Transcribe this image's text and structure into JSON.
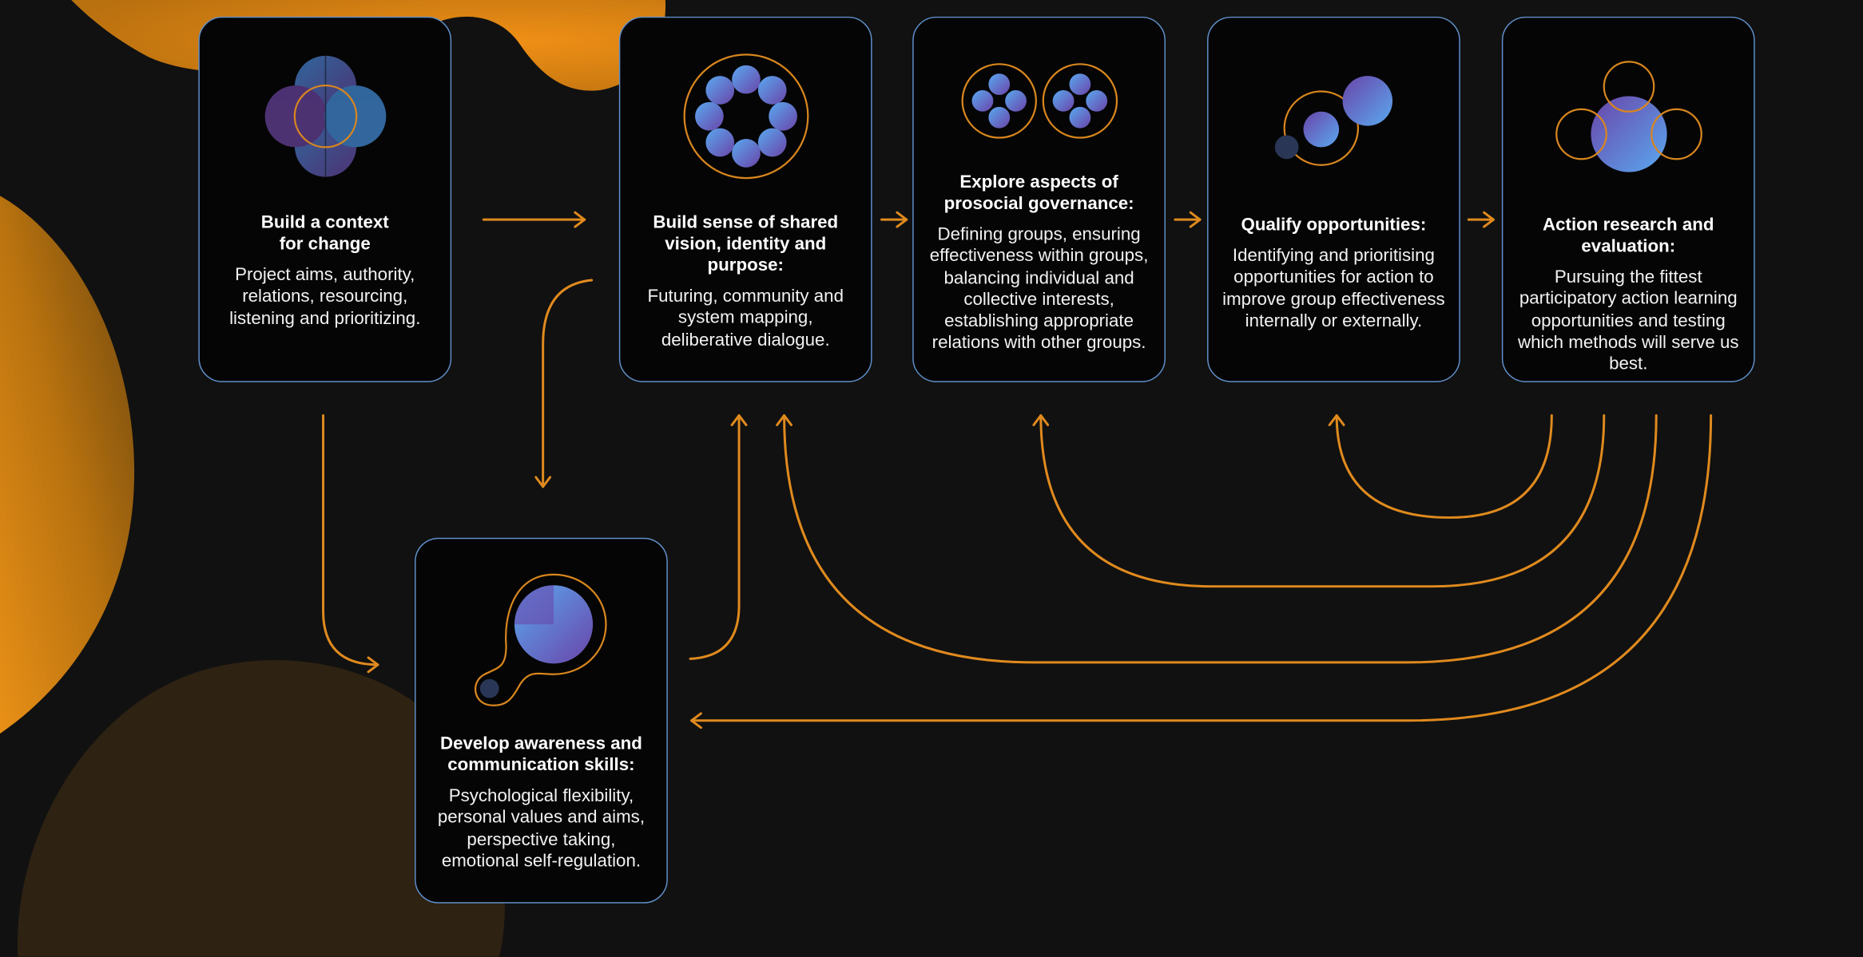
{
  "colors": {
    "background": "#111111",
    "card_background": "#050505",
    "card_border": "#5f8fc9",
    "connector": "#e08a1e",
    "blob": "#e0861c",
    "icon_blue": "#4aa3ef",
    "icon_purple": "#6b3a8c"
  },
  "steps": [
    {
      "id": "context",
      "title": "Build a context\nfor change",
      "body": "Project aims, authority, relations, resourcing, listening and prioritizing.",
      "icon": "quatrefoil-icon"
    },
    {
      "id": "vision",
      "title": "Build sense of shared vision, identity and purpose:",
      "body": "Futuring, community and system mapping, deliberative dialogue.",
      "icon": "ring-of-circles-icon"
    },
    {
      "id": "governance",
      "title": "Explore aspects of prosocial governance:",
      "body": "Defining groups, ensuring effectiveness within groups, balancing individual and collective interests, establishing appropriate relations with other groups.",
      "icon": "twin-groups-icon"
    },
    {
      "id": "opportunities",
      "title": "Qualify opportunities:",
      "body": "Identifying and prioritising opportunities for action to improve group effectiveness internally or externally.",
      "icon": "growing-circles-icon"
    },
    {
      "id": "research",
      "title": "Action research and evaluation:",
      "body": "Pursuing the fittest participatory action learning opportunities and testing which methods will serve us best.",
      "icon": "venn-circles-icon"
    },
    {
      "id": "awareness",
      "title": "Develop awareness and communication skills:",
      "body": "Psychological flexibility, personal values and aims, perspective taking, emotional self-regulation.",
      "icon": "pie-with-satellite-icon"
    }
  ]
}
